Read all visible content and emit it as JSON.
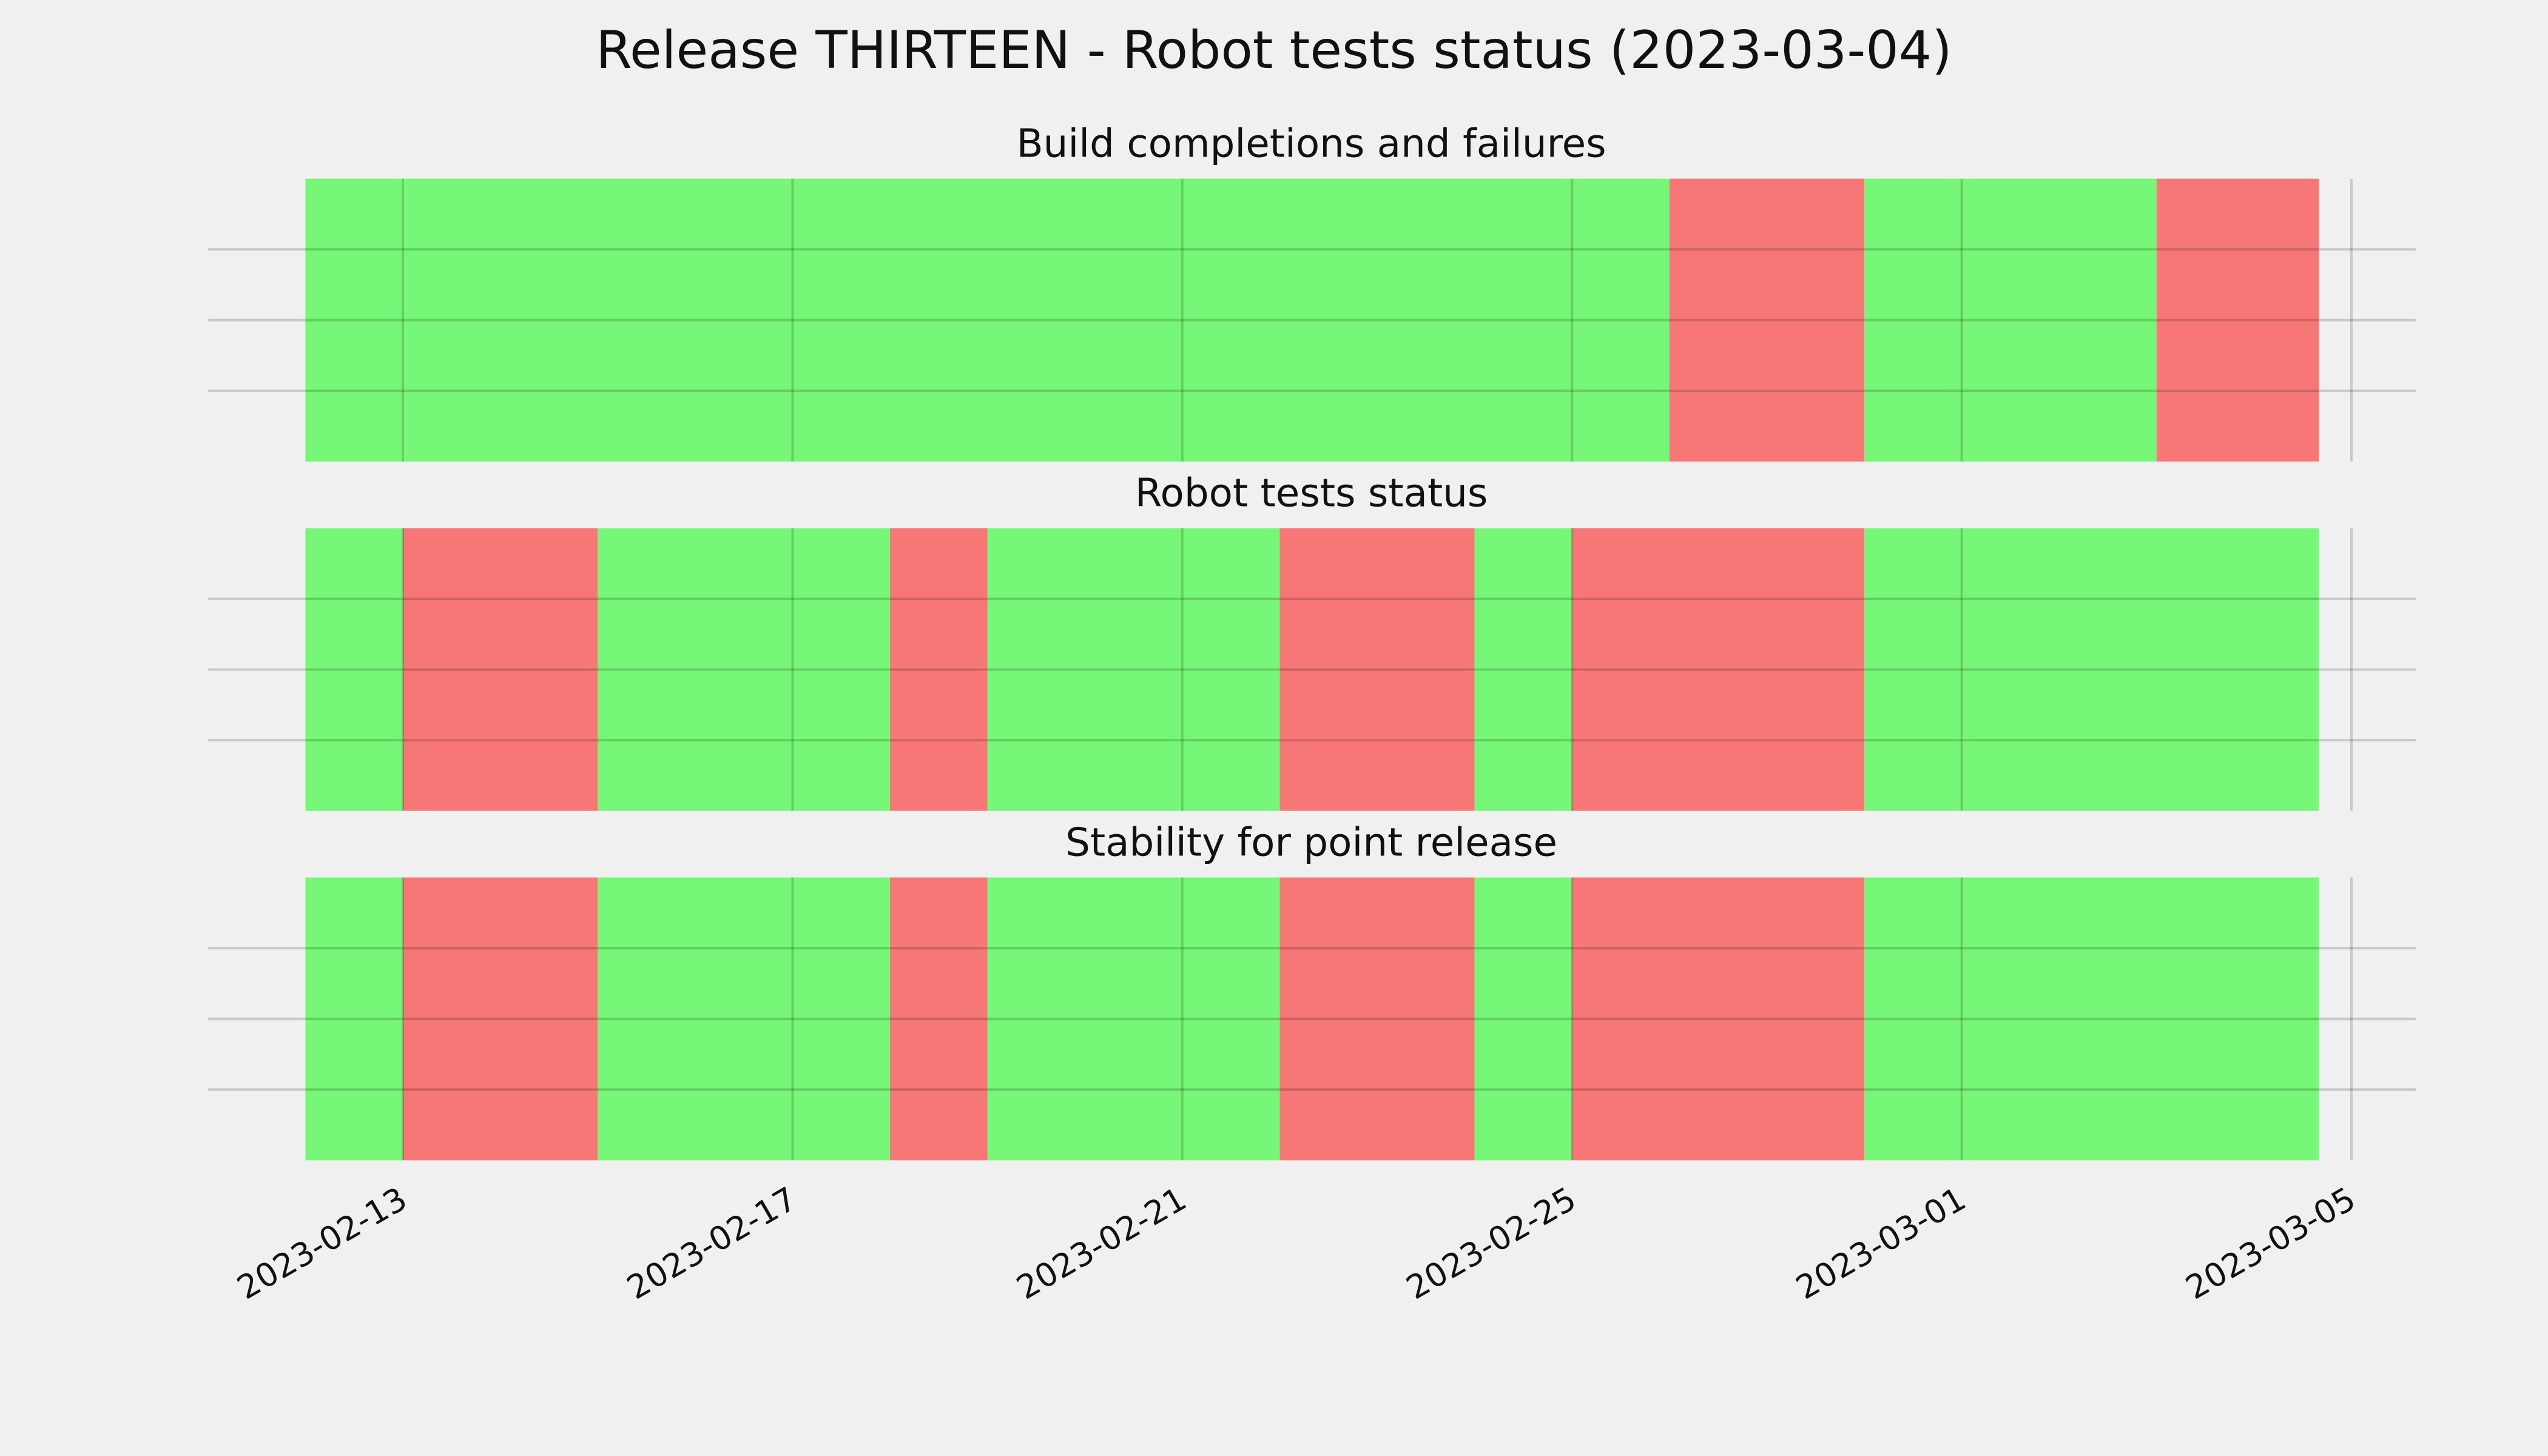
{
  "title": "Release THIRTEEN - Robot tests status (2023-03-04)",
  "chart_data": [
    {
      "type": "timeline",
      "title": "Build completions and failures",
      "xlim": [
        "2023-02-11",
        "2023-03-05T16:00"
      ],
      "xticks": [
        "2023-02-13",
        "2023-02-17",
        "2023-02-21",
        "2023-02-25",
        "2023-03-01",
        "2023-03-05"
      ],
      "grid": true,
      "spans": [
        {
          "start": "2023-02-12",
          "end": "2023-02-26",
          "color": "#77f777"
        },
        {
          "start": "2023-02-26",
          "end": "2023-02-28",
          "color": "#f77777"
        },
        {
          "start": "2023-02-28",
          "end": "2023-03-03",
          "color": "#77f777"
        },
        {
          "start": "2023-03-03",
          "end": "2023-03-04T16:00",
          "color": "#f77777"
        }
      ]
    },
    {
      "type": "timeline",
      "title": "Robot tests status",
      "xlim": [
        "2023-02-11",
        "2023-03-05T16:00"
      ],
      "xticks": [
        "2023-02-13",
        "2023-02-17",
        "2023-02-21",
        "2023-02-25",
        "2023-03-01",
        "2023-03-05"
      ],
      "grid": true,
      "spans": [
        {
          "start": "2023-02-12",
          "end": "2023-02-13",
          "color": "#77f777"
        },
        {
          "start": "2023-02-13",
          "end": "2023-02-15",
          "color": "#f77777"
        },
        {
          "start": "2023-02-15",
          "end": "2023-02-18",
          "color": "#77f777"
        },
        {
          "start": "2023-02-18",
          "end": "2023-02-19",
          "color": "#f77777"
        },
        {
          "start": "2023-02-19",
          "end": "2023-02-22",
          "color": "#77f777"
        },
        {
          "start": "2023-02-22",
          "end": "2023-02-24",
          "color": "#f77777"
        },
        {
          "start": "2023-02-24",
          "end": "2023-02-25",
          "color": "#77f777"
        },
        {
          "start": "2023-02-25",
          "end": "2023-02-28",
          "color": "#f77777"
        },
        {
          "start": "2023-02-28",
          "end": "2023-03-04T16:00",
          "color": "#77f777"
        }
      ]
    },
    {
      "type": "timeline",
      "title": "Stability for point release",
      "xlim": [
        "2023-02-11",
        "2023-03-05T16:00"
      ],
      "xticks": [
        "2023-02-13",
        "2023-02-17",
        "2023-02-21",
        "2023-02-25",
        "2023-03-01",
        "2023-03-05"
      ],
      "grid": true,
      "spans": [
        {
          "start": "2023-02-12",
          "end": "2023-02-13",
          "color": "#77f777"
        },
        {
          "start": "2023-02-13",
          "end": "2023-02-15",
          "color": "#f77777"
        },
        {
          "start": "2023-02-15",
          "end": "2023-02-18",
          "color": "#77f777"
        },
        {
          "start": "2023-02-18",
          "end": "2023-02-19",
          "color": "#f77777"
        },
        {
          "start": "2023-02-19",
          "end": "2023-02-22",
          "color": "#77f777"
        },
        {
          "start": "2023-02-22",
          "end": "2023-02-24",
          "color": "#f77777"
        },
        {
          "start": "2023-02-24",
          "end": "2023-02-25",
          "color": "#77f777"
        },
        {
          "start": "2023-02-25",
          "end": "2023-02-28",
          "color": "#f77777"
        },
        {
          "start": "2023-02-28",
          "end": "2023-03-04T16:00",
          "color": "#77f777"
        }
      ]
    }
  ]
}
